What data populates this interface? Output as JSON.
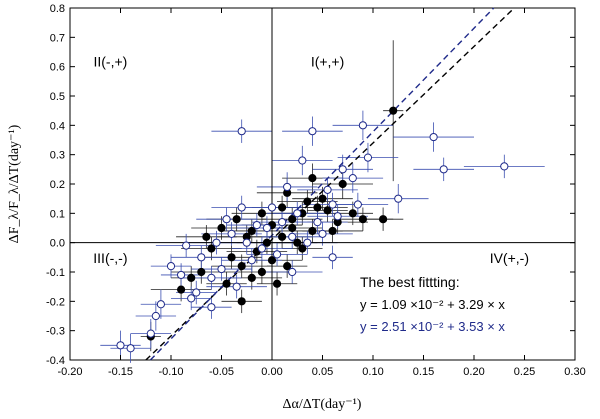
{
  "chart_data": {
    "type": "scatter",
    "xlabel": "Δα/ΔT(day⁻¹)",
    "ylabel": "ΔF_λ/F_λ/ΔT(day⁻¹)",
    "xlim": [
      -0.2,
      0.3
    ],
    "ylim": [
      -0.4,
      0.8
    ],
    "xticks": [
      -0.2,
      -0.15,
      -0.1,
      -0.05,
      0.0,
      0.05,
      0.1,
      0.15,
      0.2,
      0.25,
      0.3
    ],
    "xtick_labels": [
      "-0.20",
      "-0.15",
      "-0.10",
      "-0.05",
      "0.00",
      "0.05",
      "0.10",
      "0.15",
      "0.20",
      "0.25",
      "0.30"
    ],
    "yticks": [
      -0.4,
      -0.3,
      -0.2,
      -0.1,
      0.0,
      0.1,
      0.2,
      0.3,
      0.4,
      0.5,
      0.6,
      0.7,
      0.8
    ],
    "ytick_labels": [
      "-0.4",
      "-0.3",
      "-0.2",
      "-0.1",
      "0.0",
      "0.1",
      "0.2",
      "0.3",
      "0.4",
      "0.5",
      "0.6",
      "0.7",
      "0.8"
    ],
    "quadrants": [
      {
        "label": "I(+,+)",
        "x": 0.055,
        "y": 0.6
      },
      {
        "label": "II(-,+)",
        "x": -0.16,
        "y": 0.6
      },
      {
        "label": "III(-,-)",
        "x": -0.16,
        "y": -0.07
      },
      {
        "label": "IV(+,-)",
        "x": 0.235,
        "y": -0.07
      }
    ],
    "legend": {
      "title": "The best fittting:",
      "equations": [
        {
          "text": "y = 1.09 ×10⁻² + 3.29 × x",
          "color": "#000000"
        },
        {
          "text": "y = 2.51 ×10⁻² + 3.53 × x",
          "color": "#1f2a8a"
        }
      ]
    },
    "fits": [
      {
        "intercept": 0.0109,
        "slope": 3.29,
        "color": "#000000"
      },
      {
        "intercept": 0.0251,
        "slope": 3.53,
        "color": "#1f2a8a"
      }
    ],
    "series": [
      {
        "marker": "filled",
        "color": "#000000",
        "points": [
          [
            0.12,
            0.45,
            0.01,
            0.24
          ],
          [
            -0.12,
            -0.32,
            0.01,
            0.05
          ],
          [
            -0.09,
            -0.16,
            0.03,
            0.04
          ],
          [
            -0.07,
            -0.1,
            0.03,
            0.04
          ],
          [
            -0.06,
            -0.02,
            0.03,
            0.04
          ],
          [
            -0.05,
            0.05,
            0.03,
            0.04
          ],
          [
            -0.04,
            -0.05,
            0.03,
            0.04
          ],
          [
            -0.035,
            0.08,
            0.03,
            0.04
          ],
          [
            -0.03,
            -0.2,
            0.02,
            0.04
          ],
          [
            -0.03,
            -0.08,
            0.03,
            0.04
          ],
          [
            -0.025,
            0.02,
            0.03,
            0.04
          ],
          [
            -0.02,
            -0.12,
            0.03,
            0.04
          ],
          [
            -0.02,
            0.04,
            0.03,
            0.04
          ],
          [
            -0.015,
            -0.03,
            0.03,
            0.04
          ],
          [
            -0.01,
            0.1,
            0.03,
            0.04
          ],
          [
            -0.01,
            -0.1,
            0.03,
            0.04
          ],
          [
            -0.005,
            0.0,
            0.03,
            0.04
          ],
          [
            0.0,
            -0.06,
            0.03,
            0.04
          ],
          [
            0.0,
            0.06,
            0.03,
            0.04
          ],
          [
            0.005,
            -0.14,
            0.02,
            0.04
          ],
          [
            0.01,
            0.02,
            0.03,
            0.04
          ],
          [
            0.01,
            0.12,
            0.03,
            0.04
          ],
          [
            0.015,
            0.17,
            0.03,
            0.05
          ],
          [
            0.02,
            0.05,
            0.03,
            0.04
          ],
          [
            0.02,
            0.08,
            0.03,
            0.04
          ],
          [
            0.025,
            0.0,
            0.02,
            0.04
          ],
          [
            0.03,
            0.1,
            0.03,
            0.04
          ],
          [
            0.03,
            -0.02,
            0.02,
            0.04
          ],
          [
            0.035,
            0.14,
            0.03,
            0.04
          ],
          [
            0.04,
            0.04,
            0.03,
            0.04
          ],
          [
            0.04,
            0.22,
            0.03,
            0.05
          ],
          [
            0.045,
            0.12,
            0.03,
            0.04
          ],
          [
            0.05,
            0.15,
            0.03,
            0.04
          ],
          [
            0.055,
            0.11,
            0.02,
            0.04
          ],
          [
            0.06,
            0.04,
            0.03,
            0.04
          ],
          [
            0.065,
            0.07,
            0.03,
            0.04
          ],
          [
            0.07,
            0.2,
            0.03,
            0.05
          ],
          [
            0.08,
            0.1,
            0.02,
            0.04
          ],
          [
            0.09,
            0.08,
            0.03,
            0.04
          ],
          [
            0.11,
            0.08,
            0.02,
            0.04
          ],
          [
            -0.08,
            -0.12,
            0.02,
            0.04
          ],
          [
            -0.045,
            -0.14,
            0.02,
            0.04
          ],
          [
            0.015,
            -0.08,
            0.02,
            0.04
          ],
          [
            -0.065,
            0.02,
            0.03,
            0.04
          ]
        ]
      },
      {
        "marker": "open",
        "color": "#1f2a8a",
        "points": [
          [
            -0.15,
            -0.35,
            0.02,
            0.05
          ],
          [
            -0.14,
            -0.36,
            0.02,
            0.05
          ],
          [
            -0.12,
            -0.31,
            0.02,
            0.05
          ],
          [
            -0.115,
            -0.25,
            0.02,
            0.05
          ],
          [
            -0.11,
            -0.21,
            0.02,
            0.05
          ],
          [
            -0.1,
            -0.08,
            0.02,
            0.04
          ],
          [
            -0.09,
            -0.11,
            0.02,
            0.04
          ],
          [
            -0.08,
            -0.19,
            0.02,
            0.04
          ],
          [
            -0.075,
            -0.17,
            0.02,
            0.04
          ],
          [
            -0.07,
            -0.05,
            0.03,
            0.04
          ],
          [
            -0.06,
            -0.22,
            0.02,
            0.04
          ],
          [
            -0.06,
            -0.12,
            0.03,
            0.04
          ],
          [
            -0.055,
            0.0,
            0.03,
            0.04
          ],
          [
            -0.05,
            -0.09,
            0.03,
            0.04
          ],
          [
            -0.045,
            0.08,
            0.03,
            0.04
          ],
          [
            -0.04,
            0.03,
            0.03,
            0.04
          ],
          [
            -0.035,
            -0.15,
            0.03,
            0.04
          ],
          [
            -0.03,
            0.12,
            0.03,
            0.04
          ],
          [
            -0.03,
            0.38,
            0.03,
            0.04
          ],
          [
            -0.025,
            0.0,
            0.03,
            0.04
          ],
          [
            -0.02,
            -0.06,
            0.03,
            0.04
          ],
          [
            -0.015,
            0.06,
            0.03,
            0.04
          ],
          [
            -0.01,
            -0.02,
            0.03,
            0.04
          ],
          [
            -0.005,
            0.05,
            0.03,
            0.04
          ],
          [
            0.0,
            0.12,
            0.03,
            0.04
          ],
          [
            0.005,
            -0.04,
            0.03,
            0.04
          ],
          [
            0.01,
            0.07,
            0.03,
            0.04
          ],
          [
            0.015,
            0.19,
            0.03,
            0.05
          ],
          [
            0.02,
            0.02,
            0.03,
            0.04
          ],
          [
            0.025,
            0.1,
            0.03,
            0.04
          ],
          [
            0.03,
            0.28,
            0.03,
            0.05
          ],
          [
            0.035,
            0.0,
            0.03,
            0.04
          ],
          [
            0.04,
            0.38,
            0.03,
            0.05
          ],
          [
            0.045,
            0.07,
            0.03,
            0.04
          ],
          [
            0.05,
            0.03,
            0.03,
            0.04
          ],
          [
            0.055,
            0.18,
            0.03,
            0.04
          ],
          [
            0.06,
            0.13,
            0.03,
            0.04
          ],
          [
            0.065,
            0.09,
            0.03,
            0.04
          ],
          [
            0.07,
            0.25,
            0.03,
            0.05
          ],
          [
            0.08,
            0.22,
            0.03,
            0.05
          ],
          [
            0.085,
            0.13,
            0.03,
            0.04
          ],
          [
            0.09,
            0.4,
            0.03,
            0.05
          ],
          [
            0.095,
            0.29,
            0.03,
            0.05
          ],
          [
            0.125,
            0.15,
            0.03,
            0.05
          ],
          [
            0.16,
            0.36,
            0.04,
            0.05
          ],
          [
            0.17,
            0.25,
            0.03,
            0.04
          ],
          [
            0.23,
            0.26,
            0.04,
            0.04
          ],
          [
            0.02,
            -0.1,
            0.03,
            0.04
          ],
          [
            0.06,
            -0.05,
            0.02,
            0.04
          ],
          [
            -0.085,
            -0.01,
            0.03,
            0.04
          ]
        ]
      }
    ]
  }
}
